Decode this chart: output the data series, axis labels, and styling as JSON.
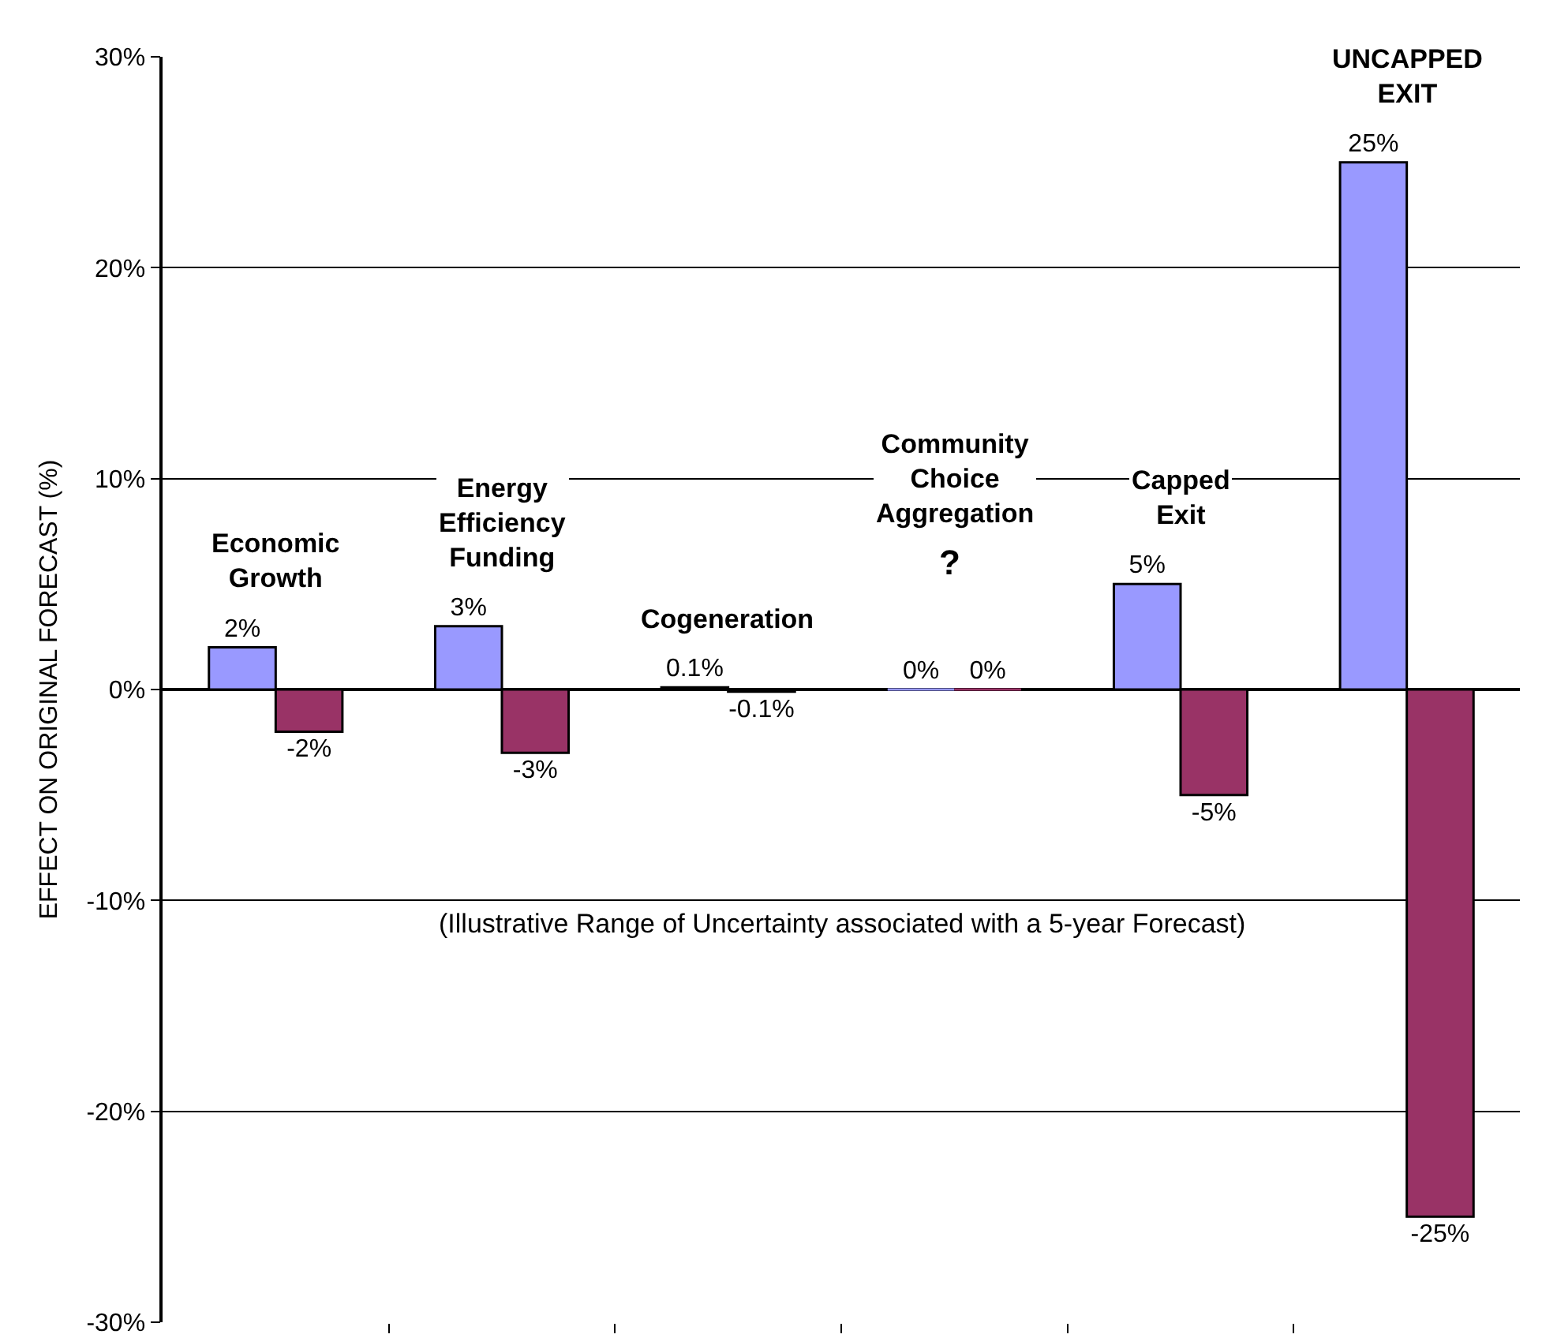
{
  "chart_data": {
    "type": "bar",
    "ylabel": "EFFECT ON ORIGINAL FORECAST (%)",
    "categories": [
      "Economic Growth",
      "Energy Efficiency Funding",
      "Cogeneration",
      "Community Choice Aggregation",
      "Capped Exit",
      "UNCAPPED EXIT"
    ],
    "series": [
      {
        "color": "#9999ff",
        "values": [
          2,
          3,
          0.1,
          0,
          5,
          25
        ],
        "value_labels": [
          "2%",
          "3%",
          "0.1%",
          "0%",
          "5%",
          "25%"
        ]
      },
      {
        "color": "#993366",
        "values": [
          -2,
          -3,
          -0.1,
          0,
          -5,
          -25
        ],
        "value_labels": [
          "-2%",
          "-3%",
          "-0.1%",
          "0%",
          "-5%",
          "-25%"
        ]
      }
    ],
    "ylim": [
      -30,
      30
    ],
    "yticks": [
      {
        "value": -30,
        "label": "-30%"
      },
      {
        "value": -20,
        "label": "-20%"
      },
      {
        "value": -10,
        "label": "-10%"
      },
      {
        "value": 0,
        "label": "0%"
      },
      {
        "value": 10,
        "label": "10%"
      },
      {
        "value": 20,
        "label": "20%"
      },
      {
        "value": 30,
        "label": "30%"
      }
    ],
    "grid": "y",
    "tick_labels": "y",
    "annotations": [
      "?",
      "(Illustrative Range of Uncertainty associated with a 5-year Forecast)"
    ]
  }
}
